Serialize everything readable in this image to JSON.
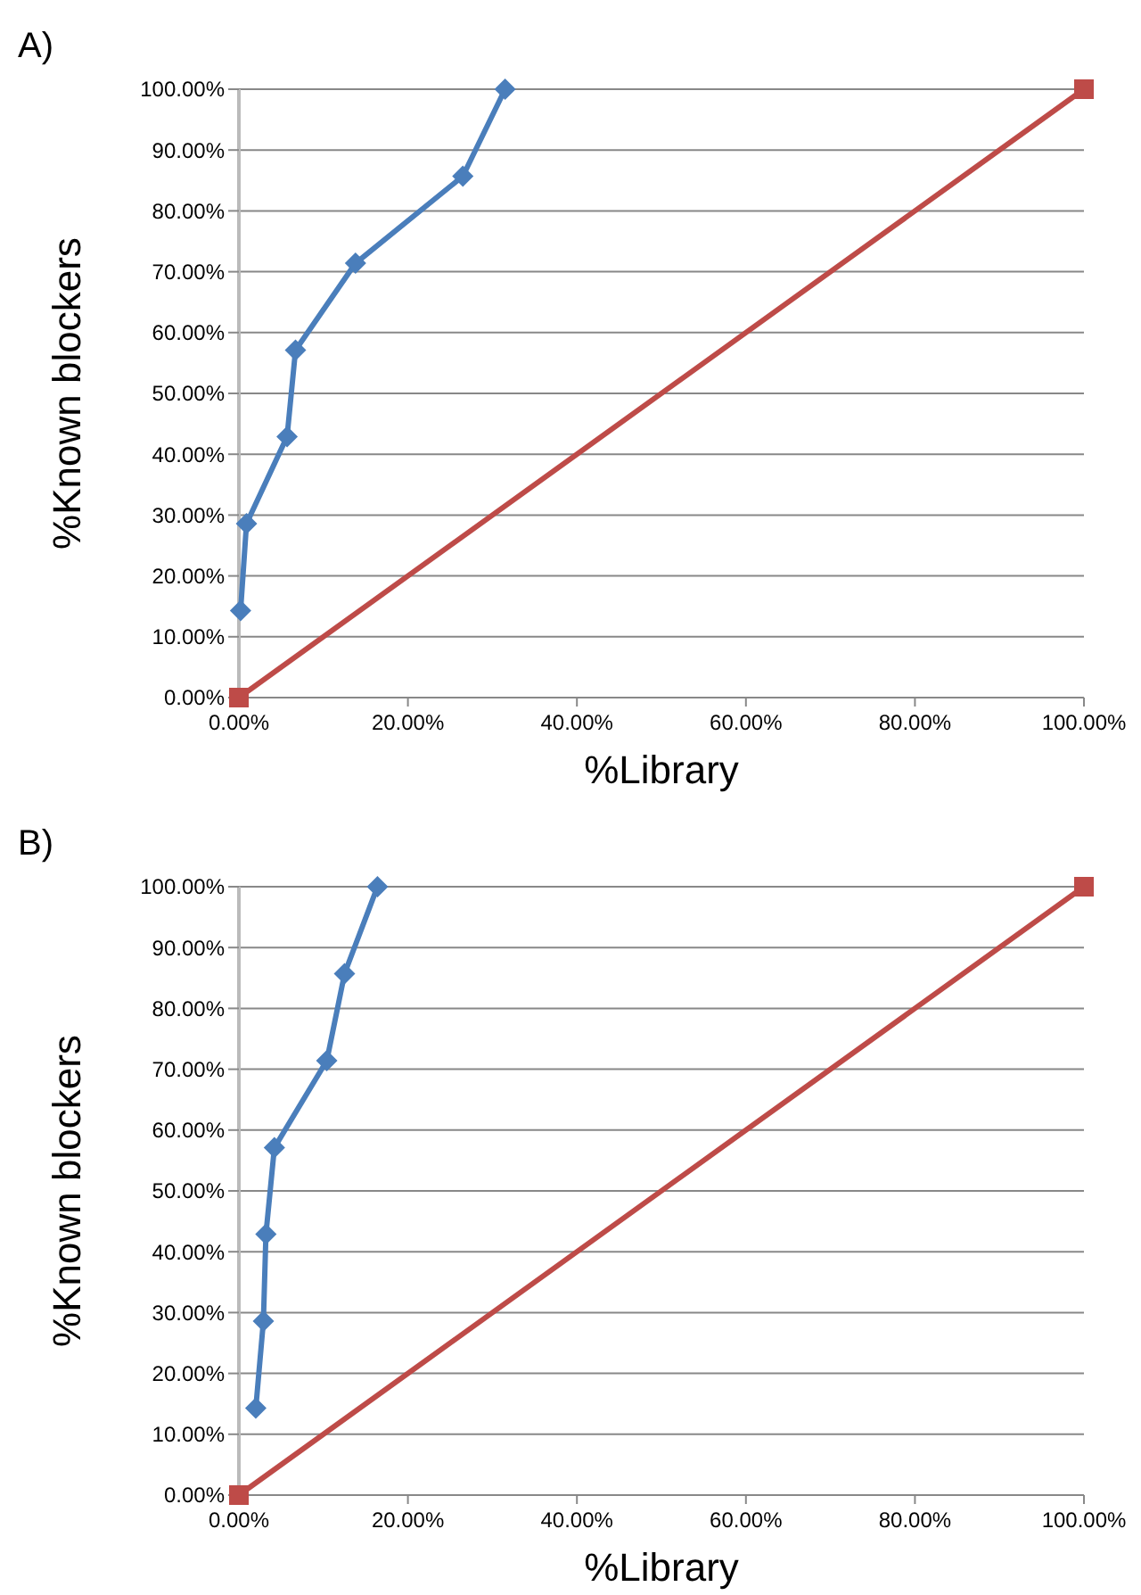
{
  "chart_data": [
    {
      "type": "line",
      "title": "A)",
      "xlabel": "%Library",
      "ylabel": "%Known blockers",
      "xlim": [
        0,
        100
      ],
      "ylim": [
        0,
        100
      ],
      "xticks": [
        {
          "value": 0,
          "label": "0.00%"
        },
        {
          "value": 20,
          "label": "20.00%"
        },
        {
          "value": 40,
          "label": "40.00%"
        },
        {
          "value": 60,
          "label": "60.00%"
        },
        {
          "value": 80,
          "label": "80.00%"
        },
        {
          "value": 100,
          "label": "100.00%"
        }
      ],
      "yticks": [
        {
          "value": 0,
          "label": "0.00%"
        },
        {
          "value": 10,
          "label": "10.00%"
        },
        {
          "value": 20,
          "label": "20.00%"
        },
        {
          "value": 30,
          "label": "30.00%"
        },
        {
          "value": 40,
          "label": "40.00%"
        },
        {
          "value": 50,
          "label": "50.00%"
        },
        {
          "value": 60,
          "label": "60.00%"
        },
        {
          "value": 70,
          "label": "70.00%"
        },
        {
          "value": 80,
          "label": "80.00%"
        },
        {
          "value": 90,
          "label": "90.00%"
        },
        {
          "value": 100,
          "label": "100.00%"
        }
      ],
      "grid": "y",
      "series": [
        {
          "color": "#4a7ebb",
          "marker": "diamond",
          "x": [
            0.2,
            0.9,
            5.7,
            6.7,
            13.8,
            26.5,
            31.5
          ],
          "values": [
            14.3,
            28.6,
            42.9,
            57.1,
            71.4,
            85.7,
            100
          ]
        },
        {
          "color": "#be4b48",
          "marker": "square",
          "x": [
            0,
            100
          ],
          "values": [
            0,
            100
          ]
        }
      ]
    },
    {
      "type": "line",
      "title": "B)",
      "xlabel": "%Library",
      "ylabel": "%Known blockers",
      "xlim": [
        0,
        100
      ],
      "ylim": [
        0,
        100
      ],
      "xticks": [
        {
          "value": 0,
          "label": "0.00%"
        },
        {
          "value": 20,
          "label": "20.00%"
        },
        {
          "value": 40,
          "label": "40.00%"
        },
        {
          "value": 60,
          "label": "60.00%"
        },
        {
          "value": 80,
          "label": "80.00%"
        },
        {
          "value": 100,
          "label": "100.00%"
        }
      ],
      "yticks": [
        {
          "value": 0,
          "label": "0.00%"
        },
        {
          "value": 10,
          "label": "10.00%"
        },
        {
          "value": 20,
          "label": "20.00%"
        },
        {
          "value": 30,
          "label": "30.00%"
        },
        {
          "value": 40,
          "label": "40.00%"
        },
        {
          "value": 50,
          "label": "50.00%"
        },
        {
          "value": 60,
          "label": "60.00%"
        },
        {
          "value": 70,
          "label": "70.00%"
        },
        {
          "value": 80,
          "label": "80.00%"
        },
        {
          "value": 90,
          "label": "90.00%"
        },
        {
          "value": 100,
          "label": "100.00%"
        }
      ],
      "grid": "y",
      "series": [
        {
          "color": "#4a7ebb",
          "marker": "diamond",
          "x": [
            2.0,
            2.9,
            3.2,
            4.2,
            10.4,
            12.5,
            16.4
          ],
          "values": [
            14.3,
            28.6,
            42.9,
            57.1,
            71.4,
            85.7,
            100
          ]
        },
        {
          "color": "#be4b48",
          "marker": "square",
          "x": [
            0,
            100
          ],
          "values": [
            0,
            100
          ]
        }
      ]
    }
  ]
}
